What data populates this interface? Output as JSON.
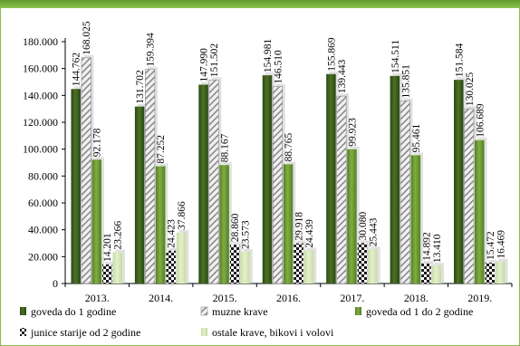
{
  "chart_data": {
    "type": "bar",
    "categories": [
      "2013.",
      "2014.",
      "2015.",
      "2016.",
      "2017.",
      "2018.",
      "2019."
    ],
    "ylim": [
      0,
      180000
    ],
    "yticks": [
      "0",
      "20.000",
      "40.000",
      "60.000",
      "80.000",
      "100.000",
      "120.000",
      "140.000",
      "160.000",
      "180.000"
    ],
    "legend_position": "bottom",
    "series": [
      {
        "name": "goveda do 1 godine",
        "color": "#3d5e1e",
        "pattern": "solid",
        "values": [
          144762,
          131702,
          147990,
          154981,
          155869,
          154511,
          151584
        ],
        "labels": [
          "144.762",
          "131.702",
          "147.990",
          "154.981",
          "155.869",
          "154.511",
          "151.584"
        ]
      },
      {
        "name": "muzne krave",
        "color": "#9a9a9a",
        "pattern": "hatch",
        "values": [
          168025,
          159394,
          151502,
          146510,
          139443,
          135851,
          130025
        ],
        "labels": [
          "168.025",
          "159.394",
          "151.502",
          "146.510",
          "139.443",
          "135.851",
          "130.025"
        ]
      },
      {
        "name": "goveda od 1 do 2 godine",
        "color": "#6f9d34",
        "pattern": "solid",
        "values": [
          92178,
          87252,
          88167,
          88765,
          99923,
          95461,
          106689
        ],
        "labels": [
          "92.178",
          "87.252",
          "88.167",
          "88.765",
          "99.923",
          "95.461",
          "106.689"
        ]
      },
      {
        "name": "junice starije od 2 godine",
        "color": "#1e1e1e",
        "pattern": "checker",
        "values": [
          14201,
          24423,
          28860,
          29918,
          30080,
          14892,
          15472
        ],
        "labels": [
          "14.201",
          "24.423",
          "28.860",
          "29.918",
          "30.080",
          "14.892",
          "15.472"
        ]
      },
      {
        "name": "ostale krave, bikovi i volovi",
        "color": "#d6e6b8",
        "pattern": "solid",
        "values": [
          23266,
          37866,
          23573,
          24439,
          25443,
          13410,
          16469
        ],
        "labels": [
          "23.266",
          "37.866",
          "23.573",
          "24.439",
          "25.443",
          "13.410",
          "16.469"
        ]
      }
    ]
  }
}
